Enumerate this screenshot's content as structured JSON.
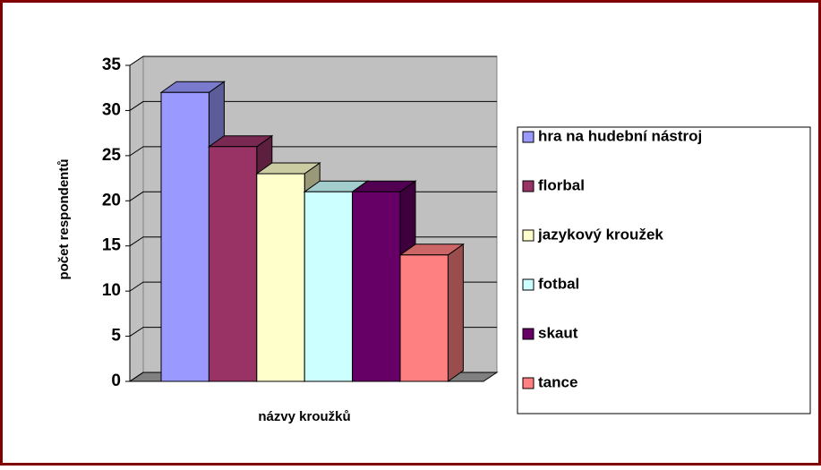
{
  "chart_data": {
    "type": "bar",
    "xlabel": "názvy kroužků",
    "ylabel": "počet respondentů",
    "categories": [
      null
    ],
    "series": [
      {
        "name": "hra na hudební nástroj",
        "color": "#9999ff",
        "values": [
          32
        ]
      },
      {
        "name": "florbal",
        "color": "#993366",
        "values": [
          26
        ]
      },
      {
        "name": "jazykový kroužek",
        "color": "#ffffcc",
        "values": [
          23
        ]
      },
      {
        "name": "fotbal",
        "color": "#ccffff",
        "values": [
          21
        ]
      },
      {
        "name": "skaut",
        "color": "#660066",
        "values": [
          21
        ]
      },
      {
        "name": "tance",
        "color": "#ff8080",
        "values": [
          14
        ]
      }
    ],
    "ylim": [
      0,
      35
    ],
    "yticks": [
      0,
      5,
      10,
      15,
      20,
      25,
      30,
      35
    ],
    "grid": true,
    "legend": "right"
  }
}
